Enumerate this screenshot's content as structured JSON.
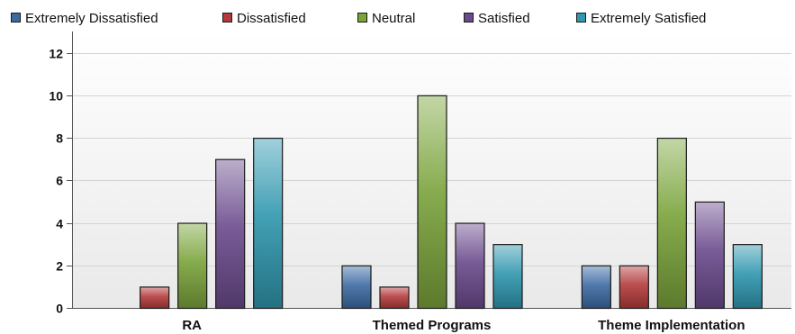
{
  "chart_data": {
    "type": "bar",
    "categories": [
      "RA",
      "Themed Programs",
      "Theme Implementation"
    ],
    "series": [
      {
        "name": "Extremely Dissatisfied",
        "values": [
          0,
          2,
          2
        ],
        "color": "#3b6aa3"
      },
      {
        "name": "Dissatisfied",
        "values": [
          1,
          1,
          2
        ],
        "color": "#b33a3a"
      },
      {
        "name": "Neutral",
        "values": [
          4,
          10,
          8
        ],
        "color": "#7aa33a"
      },
      {
        "name": "Satisfied",
        "values": [
          7,
          4,
          5
        ],
        "color": "#6a4a8c"
      },
      {
        "name": "Extremely Satisfied",
        "values": [
          8,
          3,
          3
        ],
        "color": "#2f97ae"
      }
    ],
    "yticks": [
      0,
      2,
      4,
      6,
      8,
      10,
      12
    ],
    "ylim": [
      0,
      13
    ],
    "grid": true,
    "legend_position": "top"
  }
}
